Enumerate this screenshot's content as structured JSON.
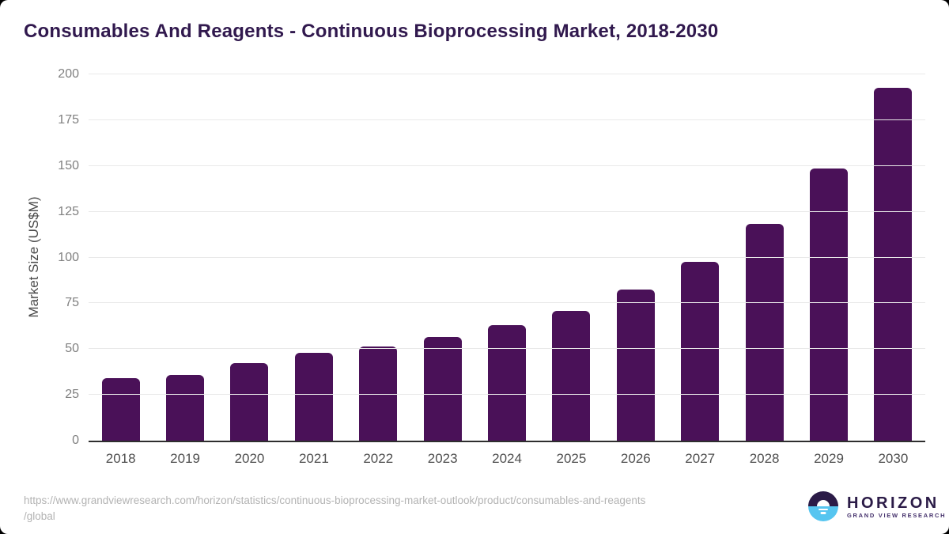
{
  "title": "Consumables And Reagents - Continuous Bioprocessing Market, 2018-2030",
  "chart_data": {
    "type": "bar",
    "title": "Consumables And Reagents - Continuous Bioprocessing Market, 2018-2030",
    "categories": [
      "2018",
      "2019",
      "2020",
      "2021",
      "2022",
      "2023",
      "2024",
      "2025",
      "2026",
      "2027",
      "2028",
      "2029",
      "2030"
    ],
    "values": [
      34,
      36,
      42.5,
      48,
      51.5,
      56.5,
      63,
      71,
      82.5,
      97.5,
      118.5,
      148.5,
      192.5
    ],
    "xlabel": "",
    "ylabel": "Market Size (US$M)",
    "ylim": [
      0,
      200
    ],
    "yticks": [
      0,
      25,
      50,
      75,
      100,
      125,
      150,
      175,
      200
    ],
    "grid": true,
    "legend": "none",
    "bar_color": "#4a1158"
  },
  "footer": {
    "source_url_line1": "https://www.grandviewresearch.com/horizon/statistics/continuous-bioprocessing-market-outlook/product/consumables-and-reagents",
    "source_url_line2": "/global",
    "logo_name": "HORIZON",
    "logo_subtitle": "GRAND VIEW RESEARCH"
  },
  "colors": {
    "bar": "#4a1158",
    "title_text": "#31194e",
    "axis_text": "#4a4a4a",
    "tick_text": "#7f7f7f",
    "gridline": "#e9e9e9",
    "baseline": "#2e2e2e",
    "url_text": "#b3b3b3",
    "logo_dark": "#2b1b47",
    "logo_blue": "#56c5f0"
  }
}
